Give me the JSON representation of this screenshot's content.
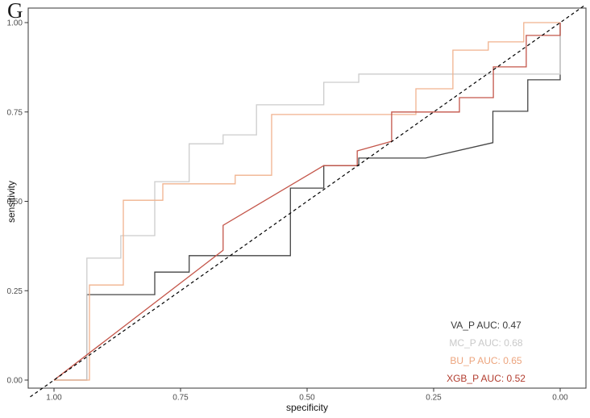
{
  "figure": {
    "panel_label": "G"
  },
  "chart_data": {
    "type": "line",
    "subtype": "roc-step-curves",
    "title": "",
    "xlabel": "specificity",
    "ylabel": "sensitivity",
    "x_reversed": true,
    "xlim": [
      1.0,
      0.0
    ],
    "ylim": [
      0.0,
      1.0
    ],
    "grid": false,
    "panel_border_color": "#474747",
    "tick_color": "#333333",
    "tick_label_color": "#4d4d4d",
    "x_ticks": [
      1.0,
      0.75,
      0.5,
      0.25,
      0.0
    ],
    "x_tick_labels": [
      "1.00",
      "0.75",
      "0.50",
      "0.25",
      "0.00"
    ],
    "y_ticks": [
      0.0,
      0.25,
      0.5,
      0.75,
      1.0
    ],
    "y_tick_labels": [
      "0.00",
      "0.25",
      "0.50",
      "0.75",
      "1.00"
    ],
    "reference_line": {
      "description": "chance diagonal",
      "style": "dashed",
      "color": "#000000",
      "from_spec_sens": [
        1.0,
        0.0
      ],
      "to_spec_sens": [
        0.0,
        1.0
      ]
    },
    "series": [
      {
        "name": "VA_P",
        "auc": 0.47,
        "color": "#454545",
        "points": [
          [
            1.0,
            0.0
          ],
          [
            0.935,
            0.0
          ],
          [
            0.935,
            0.239
          ],
          [
            0.801,
            0.239
          ],
          [
            0.801,
            0.302
          ],
          [
            0.733,
            0.302
          ],
          [
            0.733,
            0.348
          ],
          [
            0.533,
            0.348
          ],
          [
            0.533,
            0.537
          ],
          [
            0.467,
            0.537
          ],
          [
            0.467,
            0.6
          ],
          [
            0.398,
            0.6
          ],
          [
            0.398,
            0.621
          ],
          [
            0.266,
            0.621
          ],
          [
            0.133,
            0.664
          ],
          [
            0.133,
            0.752
          ],
          [
            0.064,
            0.752
          ],
          [
            0.064,
            0.84
          ],
          [
            0.0,
            0.84
          ],
          [
            0.0,
            1.0
          ]
        ]
      },
      {
        "name": "MC_P",
        "auc": 0.68,
        "color": "#cccccc",
        "points": [
          [
            1.0,
            0.0
          ],
          [
            0.935,
            0.0
          ],
          [
            0.935,
            0.341
          ],
          [
            0.868,
            0.341
          ],
          [
            0.868,
            0.404
          ],
          [
            0.801,
            0.404
          ],
          [
            0.801,
            0.555
          ],
          [
            0.733,
            0.555
          ],
          [
            0.733,
            0.661
          ],
          [
            0.666,
            0.661
          ],
          [
            0.666,
            0.686
          ],
          [
            0.6,
            0.686
          ],
          [
            0.6,
            0.77
          ],
          [
            0.467,
            0.77
          ],
          [
            0.467,
            0.833
          ],
          [
            0.398,
            0.833
          ],
          [
            0.398,
            0.856
          ],
          [
            0.0,
            0.856
          ],
          [
            0.0,
            1.0
          ]
        ]
      },
      {
        "name": "BU_P",
        "auc": 0.65,
        "color": "#f0b28e",
        "points": [
          [
            1.0,
            0.0
          ],
          [
            0.93,
            0.0
          ],
          [
            0.93,
            0.266
          ],
          [
            0.863,
            0.266
          ],
          [
            0.863,
            0.503
          ],
          [
            0.785,
            0.503
          ],
          [
            0.785,
            0.549
          ],
          [
            0.642,
            0.549
          ],
          [
            0.642,
            0.573
          ],
          [
            0.57,
            0.573
          ],
          [
            0.57,
            0.743
          ],
          [
            0.285,
            0.743
          ],
          [
            0.285,
            0.815
          ],
          [
            0.212,
            0.815
          ],
          [
            0.212,
            0.923
          ],
          [
            0.142,
            0.923
          ],
          [
            0.142,
            0.946
          ],
          [
            0.072,
            0.946
          ],
          [
            0.072,
            1.0
          ],
          [
            0.0,
            1.0
          ]
        ]
      },
      {
        "name": "XGB_P",
        "auc": 0.52,
        "color": "#c4564a",
        "points": [
          [
            1.0,
            0.0
          ],
          [
            0.666,
            0.363
          ],
          [
            0.666,
            0.433
          ],
          [
            0.467,
            0.6
          ],
          [
            0.401,
            0.6
          ],
          [
            0.401,
            0.641
          ],
          [
            0.333,
            0.668
          ],
          [
            0.333,
            0.75
          ],
          [
            0.199,
            0.75
          ],
          [
            0.199,
            0.79
          ],
          [
            0.132,
            0.79
          ],
          [
            0.132,
            0.876
          ],
          [
            0.067,
            0.876
          ],
          [
            0.067,
            0.964
          ],
          [
            0.0,
            0.964
          ],
          [
            0.0,
            1.0
          ]
        ]
      }
    ],
    "legend": {
      "position": "bottom-right",
      "entries": [
        {
          "label": "VA_P AUC: 0.47",
          "text_color": "#3a3a3a"
        },
        {
          "label": "MC_P AUC: 0.68",
          "text_color": "#c9c9c9"
        },
        {
          "label": "BU_P AUC: 0.65",
          "text_color": "#eca47d"
        },
        {
          "label": "XGB_P AUC: 0.52",
          "text_color": "#b23c2e"
        }
      ]
    }
  }
}
